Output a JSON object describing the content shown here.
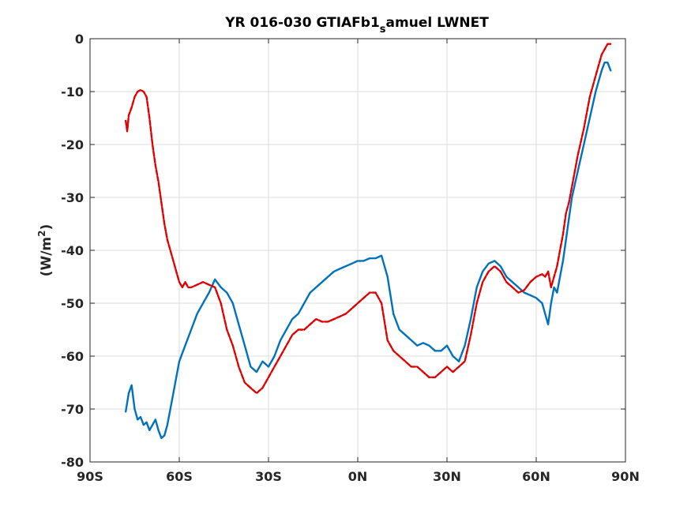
{
  "chart_data": {
    "type": "line",
    "title_main": "YR 016-030 GTIAFb1",
    "title_sub": "s",
    "title_tail": "amuel LWNET",
    "ylabel_main": "(W/m",
    "ylabel_sup": "2",
    "ylabel_tail": ")",
    "xlabel": "",
    "xlim": [
      -90,
      90
    ],
    "ylim": [
      -80,
      0
    ],
    "xticks": [
      -90,
      -60,
      -30,
      0,
      30,
      60,
      90
    ],
    "xtick_labels": [
      "90S",
      "60S",
      "30S",
      "0N",
      "30N",
      "60N",
      "90N"
    ],
    "yticks": [
      0,
      -10,
      -20,
      -30,
      -40,
      -50,
      -60,
      -70,
      -80
    ],
    "ytick_labels": [
      "0",
      "-10",
      "-20",
      "-30",
      "-40",
      "-50",
      "-60",
      "-70",
      "-80"
    ],
    "grid": true,
    "series": [
      {
        "style": "solid",
        "color": "#0072BD",
        "x": [
          -78,
          -77,
          -76,
          -75,
          -74,
          -73,
          -72,
          -71,
          -70,
          -69,
          -68,
          -67,
          -66,
          -65,
          -64,
          -62,
          -60,
          -58,
          -56,
          -54,
          -52,
          -50,
          -48,
          -46,
          -44,
          -42,
          -40,
          -38,
          -36,
          -34,
          -32,
          -30,
          -28,
          -26,
          -24,
          -22,
          -20,
          -18,
          -16,
          -14,
          -12,
          -10,
          -8,
          -6,
          -4,
          -2,
          0,
          2,
          4,
          6,
          8,
          10,
          12,
          14,
          16,
          18,
          20,
          22,
          24,
          26,
          28,
          30,
          32,
          34,
          36,
          38,
          40,
          42,
          44,
          46,
          48,
          50,
          52,
          54,
          56,
          58,
          60,
          62,
          63,
          64,
          65,
          66,
          67,
          68,
          69,
          70,
          71,
          72,
          74,
          76,
          78,
          80,
          82,
          83,
          84,
          85
        ],
        "y": [
          -70.5,
          -67,
          -65.5,
          -70,
          -72,
          -71.5,
          -73,
          -72.5,
          -74,
          -73,
          -72,
          -74,
          -75.5,
          -75,
          -73,
          -67,
          -61,
          -58,
          -55,
          -52,
          -50,
          -48,
          -45.5,
          -47,
          -48,
          -50,
          -54,
          -58,
          -62,
          -63,
          -61,
          -62,
          -60,
          -57,
          -55,
          -53,
          -52,
          -50,
          -48,
          -47,
          -46,
          -45,
          -44,
          -43.5,
          -43,
          -42.5,
          -42,
          -42,
          -41.5,
          -41.5,
          -41,
          -45,
          -52,
          -55,
          -56,
          -57,
          -58,
          -57.5,
          -58,
          -59,
          -59,
          -58,
          -60,
          -61,
          -58,
          -53,
          -47,
          -44,
          -42.5,
          -42,
          -43,
          -45,
          -46,
          -47,
          -48,
          -48.5,
          -49,
          -50,
          -52,
          -54,
          -50,
          -47,
          -48,
          -45,
          -42,
          -38,
          -34,
          -30,
          -25,
          -20,
          -15,
          -10,
          -6,
          -4.5,
          -4.5,
          -6
        ]
      },
      {
        "style": "dashed",
        "color": "#E00000",
        "x": [
          -78,
          -77.5,
          -77,
          -76,
          -75,
          -74,
          -73,
          -72,
          -71,
          -70,
          -69,
          -68,
          -67,
          -66,
          -65,
          -64,
          -63,
          -62,
          -61,
          -60,
          -59,
          -58,
          -57,
          -56,
          -54,
          -52,
          -50,
          -48,
          -46,
          -44,
          -42,
          -40,
          -38,
          -36,
          -34,
          -32,
          -30,
          -28,
          -26,
          -24,
          -22,
          -20,
          -18,
          -16,
          -14,
          -12,
          -10,
          -8,
          -6,
          -4,
          -2,
          0,
          2,
          4,
          6,
          8,
          10,
          12,
          14,
          16,
          18,
          20,
          22,
          24,
          26,
          28,
          30,
          32,
          34,
          36,
          38,
          40,
          42,
          44,
          46,
          48,
          50,
          52,
          54,
          56,
          58,
          60,
          62,
          63,
          64,
          65,
          66,
          67,
          68,
          69,
          70,
          71,
          72,
          74,
          76,
          78,
          80,
          82,
          84,
          85
        ],
        "y": [
          -15.5,
          -17.5,
          -14.5,
          -13,
          -11,
          -10,
          -9.7,
          -10,
          -11,
          -15,
          -20,
          -24,
          -27,
          -31,
          -35,
          -38,
          -40,
          -42,
          -44,
          -46,
          -47,
          -46,
          -47,
          -47,
          -46.5,
          -46,
          -46.5,
          -47,
          -50,
          -55,
          -58,
          -62,
          -65,
          -66,
          -67,
          -66,
          -64,
          -62,
          -60,
          -58,
          -56,
          -55,
          -55,
          -54,
          -53,
          -53.5,
          -53.5,
          -53,
          -52.5,
          -52,
          -51,
          -50,
          -49,
          -48,
          -48,
          -50,
          -57,
          -59,
          -60,
          -61,
          -62,
          -62,
          -63,
          -64,
          -64,
          -63,
          -62,
          -63,
          -62,
          -61,
          -56,
          -50,
          -46,
          -44,
          -43,
          -44,
          -46,
          -47,
          -48,
          -47.5,
          -46,
          -45,
          -44.5,
          -45,
          -44,
          -47,
          -45,
          -43,
          -40,
          -37,
          -33,
          -31,
          -28,
          -22,
          -17,
          -11,
          -7,
          -3,
          -1,
          -1
        ]
      }
    ]
  }
}
